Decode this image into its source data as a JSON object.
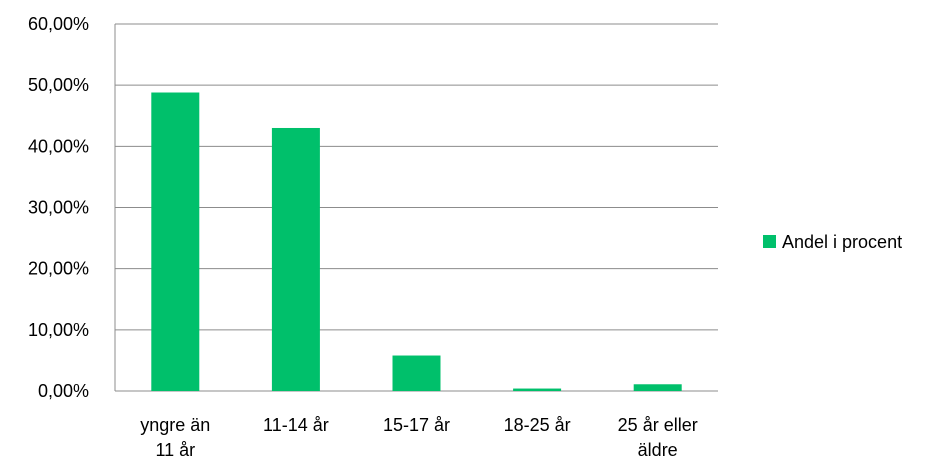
{
  "chart_data": {
    "type": "bar",
    "categories": [
      [
        "yngre än",
        "11 år"
      ],
      [
        "11-14 år"
      ],
      [
        "15-17 år"
      ],
      [
        "18-25 år"
      ],
      [
        "25 år eller",
        "äldre"
      ]
    ],
    "series": [
      {
        "name": "Andel i procent",
        "values": [
          48.8,
          43.0,
          5.8,
          0.4,
          1.1
        ],
        "color": "#00C06B"
      }
    ],
    "ylim": [
      0,
      60
    ],
    "yticks": [
      0,
      10,
      20,
      30,
      40,
      50,
      60
    ],
    "ytick_labels": [
      "0,00%",
      "10,00%",
      "20,00%",
      "30,00%",
      "40,00%",
      "50,00%",
      "60,00%"
    ],
    "grid": true,
    "grid_color": "#8c8c8c",
    "legend_position": "right",
    "title": "",
    "xlabel": "",
    "ylabel": ""
  }
}
